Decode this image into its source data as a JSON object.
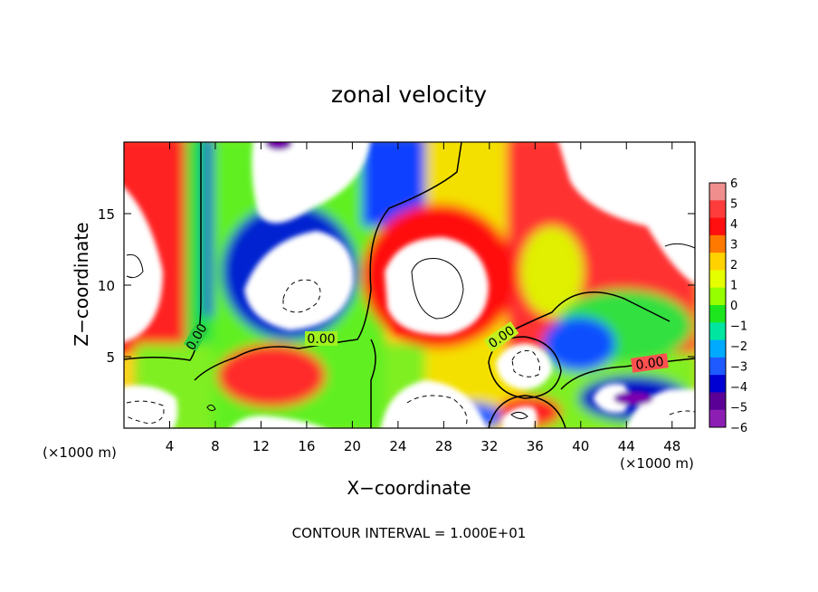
{
  "chart_data": {
    "type": "heatmap",
    "title": "zonal velocity",
    "xlabel": "X−coordinate",
    "ylabel": "Z−coordinate",
    "x_unit": "(×1000 m)",
    "z_unit": "(×1000 m)",
    "xlim": [
      0,
      50
    ],
    "ylim": [
      0,
      20
    ],
    "x_ticks": [
      4,
      8,
      12,
      16,
      20,
      24,
      28,
      32,
      36,
      40,
      44,
      48
    ],
    "x_tick_labels": [
      "4",
      "8",
      "12",
      "16",
      "20",
      "24",
      "28",
      "32",
      "36",
      "40",
      "44",
      "48"
    ],
    "y_ticks": [
      5,
      10,
      15
    ],
    "y_tick_labels": [
      "5",
      "10",
      "15"
    ],
    "colorbar": {
      "levels": [
        6,
        5,
        4,
        3,
        2,
        1,
        0,
        -1,
        -2,
        -3,
        -4,
        -5,
        -6
      ],
      "labels": [
        "6",
        "5",
        "4",
        "3",
        "2",
        "1",
        "0",
        "−1",
        "−2",
        "−3",
        "−4",
        "−5",
        "−6"
      ],
      "colors": [
        "#f08e8e",
        "#ff3c3c",
        "#ff0f0f",
        "#ff7800",
        "#ffd200",
        "#e6ff00",
        "#96ff00",
        "#1ee61e",
        "#00e6a0",
        "#00aaff",
        "#1e5aff",
        "#0000d2",
        "#5a0096",
        "#8c1eb4"
      ]
    },
    "contour_labels": [
      "0.00",
      "0.00",
      "0.00",
      "0.00"
    ],
    "contour_interval_text": "CONTOUR INTERVAL = 1.000E+01",
    "grid": false,
    "legend": "right"
  }
}
